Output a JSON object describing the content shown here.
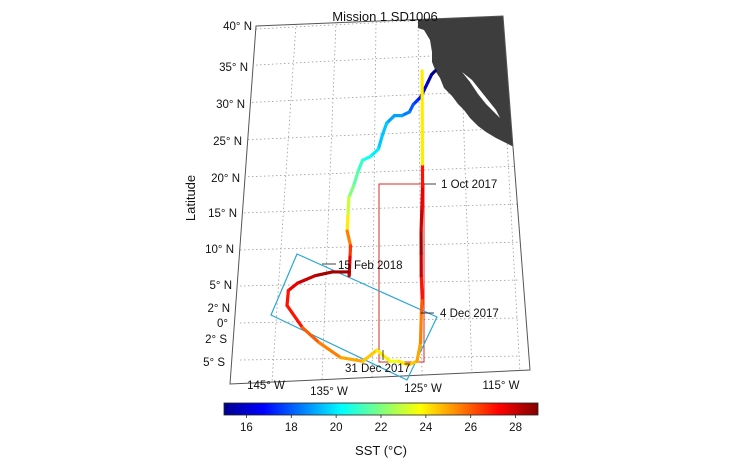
{
  "title": "Mission 1 SD1006",
  "ylabel": "Latitude",
  "colorbar": {
    "label": "SST (°C)",
    "ticks": [
      "16",
      "18",
      "20",
      "22",
      "24",
      "26",
      "28"
    ],
    "range": [
      15,
      29
    ],
    "colormap": "jet"
  },
  "lat_ticks": [
    "40° N",
    "35° N",
    "30° N",
    "25° N",
    "20° N",
    "15° N",
    "10° N",
    "5° N",
    "2° N",
    "0°",
    "2° S",
    "5° S"
  ],
  "lon_ticks": [
    "145° W",
    "135° W",
    "125° W",
    "115° W"
  ],
  "annotations": [
    {
      "label": "1 Oct 2017"
    },
    {
      "label": "15 Feb 2018"
    },
    {
      "label": "4 Dec 2017"
    },
    {
      "label": "31 Dec 2017"
    }
  ],
  "colors": {
    "land": "#3d3d3d",
    "equator_box": "#2aa7d8",
    "transect_box": "#d62a2a",
    "grid": "#9a9a9a"
  },
  "chart_data": {
    "type": "map",
    "title": "Mission 1 SD1006",
    "ylabel": "Latitude",
    "lat_range": [
      -6,
      40
    ],
    "lon_range": [
      -150,
      -110
    ],
    "grid": true,
    "track": {
      "lon": [
        -122.5,
        -123.0,
        -123.5,
        -124.0,
        -124.5,
        -125.0,
        -125.5,
        -126.0,
        -127.0,
        -128.0,
        -129.0,
        -129.5,
        -130.0,
        -131.0,
        -132.0,
        -132.5,
        -133.0,
        -133.5,
        -133.5,
        -133.5,
        -133.0,
        -133.0,
        -133.0,
        -133.0,
        -133.0,
        -135.0,
        -137.0,
        -139.0,
        -140.0,
        -140.0,
        -138.0,
        -136.0,
        -133.5,
        -131.0,
        -129.5,
        -128.0,
        -127.0,
        -126.0,
        -125.0,
        -124.6,
        -124.5,
        -124.4,
        -124.5,
        -124.5,
        -124.5,
        -124.4,
        -124.3,
        -124.3,
        -124.3
      ],
      "lat": [
        34.5,
        34.0,
        33.0,
        32.0,
        31.0,
        30.5,
        30.0,
        29.0,
        28.5,
        28.5,
        27.5,
        26.0,
        24.0,
        23.0,
        22.5,
        21.0,
        19.0,
        17.5,
        15.0,
        13.0,
        11.0,
        9.5,
        8.0,
        7.0,
        7.5,
        7.5,
        7.0,
        6.0,
        5.0,
        3.0,
        0.0,
        -2.0,
        -4.0,
        -4.5,
        -3.0,
        -4.5,
        -4.5,
        -5.0,
        -4.5,
        -2.0,
        2.0,
        4.0,
        7.0,
        10.0,
        13.0,
        16.0,
        19.0,
        22.0,
        34.5
      ],
      "sst": [
        15.0,
        15.5,
        16.0,
        16.5,
        17.0,
        17.5,
        18.0,
        18.5,
        19.0,
        19.0,
        19.5,
        19.5,
        20.0,
        20.5,
        21.0,
        21.5,
        22.0,
        23.0,
        24.0,
        25.5,
        26.5,
        27.5,
        28.0,
        28.0,
        28.5,
        28.5,
        28.0,
        27.5,
        27.0,
        27.0,
        26.0,
        25.5,
        25.0,
        24.5,
        24.0,
        23.5,
        24.0,
        24.5,
        25.0,
        25.5,
        26.0,
        27.0,
        28.0,
        28.5,
        28.0,
        27.5,
        27.0,
        24.0,
        20.0
      ]
    },
    "colorbar": {
      "label": "SST (°C)",
      "ticks": [
        16,
        18,
        20,
        22,
        24,
        26,
        28
      ],
      "range": [
        15,
        29
      ]
    }
  }
}
